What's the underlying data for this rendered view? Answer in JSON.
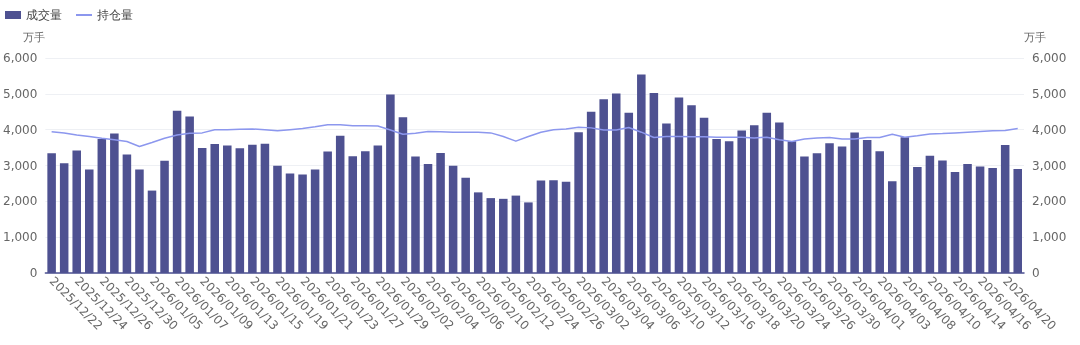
{
  "chart_data": {
    "type": "bar",
    "ylabel": "万手",
    "y2label": "万手",
    "categories": [
      "2025/12/22",
      null,
      "2025/12/24",
      null,
      "2025/12/26",
      null,
      "2025/12/30",
      null,
      "2026/01/05",
      null,
      "2026/01/07",
      null,
      "2026/01/09",
      null,
      "2026/01/13",
      null,
      "2026/01/15",
      null,
      "2026/01/19",
      null,
      "2026/01/21",
      null,
      "2026/01/23",
      null,
      "2026/01/27",
      null,
      "2026/01/29",
      null,
      "2026/02/02",
      null,
      "2026/02/04",
      null,
      "2026/02/06",
      null,
      "2026/02/10",
      null,
      "2026/02/12",
      null,
      "2026/02/24",
      null,
      "2026/02/26",
      null,
      "2026/03/02",
      null,
      "2026/03/04",
      null,
      "2026/03/06",
      null,
      "2026/03/10",
      null,
      "2026/03/12",
      null,
      "2026/03/16",
      null,
      "2026/03/18",
      null,
      "2026/03/20",
      null,
      "2026/03/24",
      null,
      "2026/03/26",
      null,
      "2026/03/30",
      null,
      "2026/04/01",
      null,
      "2026/04/03",
      null,
      "2026/04/08",
      null,
      "2026/04/10",
      null,
      "2026/04/14",
      null,
      "2026/04/16",
      null,
      "2026/04/20",
      null
    ],
    "series": [
      {
        "name": "成交量",
        "color": "#4e5191",
        "values": [
          3340,
          3060,
          3420,
          2890,
          3740,
          3890,
          3310,
          2890,
          2300,
          3130,
          4530,
          4370,
          3490,
          3600,
          3560,
          3480,
          3580,
          3610,
          2990,
          2780,
          2750,
          2890,
          3390,
          3830,
          3260,
          3400,
          3560,
          4980,
          4350,
          3250,
          3040,
          3350,
          2990,
          2660,
          2250,
          2090,
          2070,
          2160,
          1970,
          2580,
          2590,
          2550,
          3930,
          4500,
          4850,
          5010,
          4470,
          5540,
          5020,
          4170,
          4900,
          4680,
          4330,
          3740,
          3680,
          3980,
          4120,
          4470,
          4200,
          3680,
          3250,
          3340,
          3620,
          3530,
          3920,
          3710,
          3400,
          2560,
          3790,
          2960,
          3270,
          3140,
          2820,
          3040,
          2970,
          2930,
          3570,
          2900
        ]
      },
      {
        "name": "持仓量",
        "type": "line",
        "axis": "y2",
        "color": "#8c97ee",
        "values": [
          3940,
          3910,
          3850,
          3810,
          3760,
          3720,
          3670,
          3530,
          3640,
          3760,
          3850,
          3900,
          3910,
          4000,
          4000,
          4010,
          4020,
          4000,
          3970,
          4000,
          4030,
          4080,
          4140,
          4140,
          4110,
          4110,
          4100,
          3990,
          3870,
          3900,
          3950,
          3940,
          3930,
          3930,
          3930,
          3910,
          3810,
          3680,
          3810,
          3930,
          4000,
          4020,
          4070,
          4050,
          3990,
          3990,
          4060,
          3930,
          3780,
          3810,
          3810,
          3800,
          3800,
          3790,
          3790,
          3790,
          3770,
          3790,
          3720,
          3670,
          3740,
          3770,
          3780,
          3740,
          3740,
          3780,
          3780,
          3870,
          3790,
          3830,
          3880,
          3890,
          3910,
          3930,
          3950,
          3970,
          3980,
          4030
        ]
      }
    ],
    "ylim": [
      0,
      6000
    ],
    "yticks": [
      {
        "value": 0,
        "label": "0"
      },
      {
        "value": 1000,
        "label": "1,000"
      },
      {
        "value": 2000,
        "label": "2,000"
      },
      {
        "value": 3000,
        "label": "3,000"
      },
      {
        "value": 4000,
        "label": "4,000"
      },
      {
        "value": 5000,
        "label": "5,000"
      },
      {
        "value": 6000,
        "label": "6,000"
      }
    ],
    "y2lim": [
      0,
      6000
    ],
    "y2ticks": [
      {
        "value": 0,
        "label": "0"
      },
      {
        "value": 1000,
        "label": "1,000"
      },
      {
        "value": 2000,
        "label": "2,000"
      },
      {
        "value": 3000,
        "label": "3,000"
      },
      {
        "value": 4000,
        "label": "4,000"
      },
      {
        "value": 5000,
        "label": "5,000"
      },
      {
        "value": 6000,
        "label": "6,000"
      }
    ],
    "grid": "y",
    "legend": "top left",
    "marker": "none"
  }
}
